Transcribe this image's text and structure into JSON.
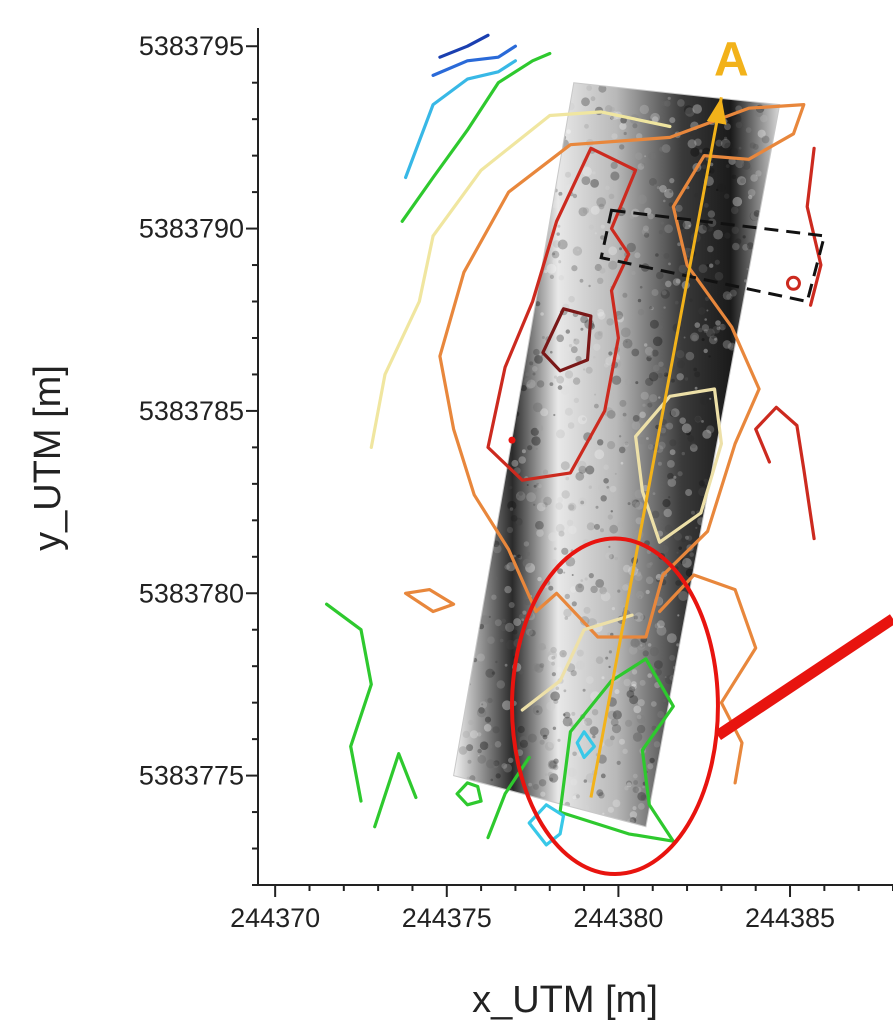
{
  "chart_data": {
    "type": "scatter",
    "title": "",
    "xlabel": "x_UTM [m]",
    "ylabel": "y_UTM [m]",
    "xlim": [
      244369.5,
      244388
    ],
    "ylim": [
      5383772,
      5383795.5
    ],
    "x_ticks": [
      244370,
      244375,
      244380,
      244385
    ],
    "x_tick_labels": [
      "244370",
      "244375",
      "244380",
      "244385"
    ],
    "y_ticks": [
      5383775,
      5383780,
      5383785,
      5383790,
      5383795
    ],
    "y_tick_labels": [
      "5383775",
      "5383780",
      "5383785",
      "5383790",
      "5383795"
    ],
    "grid": false,
    "profile": {
      "label": "A",
      "color": "#f2b21a",
      "start": [
        244379.2,
        5383774.4
      ],
      "end": [
        244383.0,
        5383793.6
      ]
    },
    "survey_strip": {
      "corners": [
        [
          244378.7,
          5383794.0
        ],
        [
          244384.7,
          5383793.4
        ],
        [
          244380.8,
          5383773.6
        ],
        [
          244375.2,
          5383775.0
        ]
      ]
    },
    "dashed_box": {
      "color": "#111111",
      "corners": [
        [
          244379.8,
          5383790.5
        ],
        [
          244386.0,
          5383789.8
        ],
        [
          244385.5,
          5383788.0
        ],
        [
          244379.5,
          5383789.2
        ]
      ]
    },
    "highlight_ellipse": {
      "color": "#e8140f",
      "center": [
        244379.9,
        5383776.9
      ],
      "radius_x": 3.0,
      "radius_y": 4.6
    },
    "pointer_arrow": {
      "color": "#e8140f",
      "from": [
        244388.0,
        5383779.3
      ],
      "to": [
        244382.9,
        5383776.1
      ]
    },
    "contours": [
      {
        "color": "#1a3fb0",
        "points": [
          [
            244374.8,
            5383794.7
          ],
          [
            244375.6,
            5383795.0
          ],
          [
            244376.2,
            5383795.3
          ]
        ]
      },
      {
        "color": "#2a6ad8",
        "points": [
          [
            244374.6,
            5383794.2
          ],
          [
            244375.6,
            5383794.6
          ],
          [
            244376.5,
            5383794.7
          ],
          [
            244377.0,
            5383795.0
          ]
        ]
      },
      {
        "color": "#38b8e6",
        "points": [
          [
            244373.8,
            5383791.4
          ],
          [
            244374.2,
            5383792.4
          ],
          [
            244374.6,
            5383793.4
          ],
          [
            244375.6,
            5383794.1
          ],
          [
            244376.5,
            5383794.3
          ],
          [
            244377.0,
            5383794.6
          ]
        ]
      },
      {
        "color": "#2ec92e",
        "points": [
          [
            244373.7,
            5383790.2
          ],
          [
            244374.6,
            5383791.4
          ],
          [
            244375.6,
            5383792.7
          ],
          [
            244376.5,
            5383794.0
          ],
          [
            244377.5,
            5383794.6
          ],
          [
            244378.0,
            5383794.8
          ]
        ]
      },
      {
        "color": "#f0e6a0",
        "points": [
          [
            244374.6,
            5383789.8
          ],
          [
            244376.0,
            5383791.6
          ],
          [
            244378.0,
            5383793.1
          ],
          [
            244379.5,
            5383793.2
          ],
          [
            244381.5,
            5383792.8
          ]
        ]
      },
      {
        "color": "#f0e6a0",
        "points": [
          [
            244372.8,
            5383784.0
          ],
          [
            244373.2,
            5383786.0
          ],
          [
            244374.2,
            5383788.0
          ],
          [
            244374.6,
            5383789.8
          ]
        ]
      },
      {
        "color": "#e8873c",
        "closed": true,
        "points": [
          [
            244375.5,
            5383788.8
          ],
          [
            244376.8,
            5383791.0
          ],
          [
            244378.6,
            5383792.3
          ],
          [
            244381.5,
            5383792.5
          ],
          [
            244383.8,
            5383793.3
          ],
          [
            244385.4,
            5383793.4
          ],
          [
            244385.1,
            5383792.6
          ],
          [
            244383.8,
            5383791.9
          ],
          [
            244382.5,
            5383792.0
          ],
          [
            244381.6,
            5383790.6
          ],
          [
            244382.0,
            5383789.0
          ],
          [
            244383.3,
            5383787.3
          ],
          [
            244384.1,
            5383785.6
          ],
          [
            244383.4,
            5383784.1
          ],
          [
            244382.6,
            5383781.7
          ],
          [
            244381.3,
            5383780.5
          ],
          [
            244380.8,
            5383778.8
          ],
          [
            244379.4,
            5383778.8
          ],
          [
            244378.2,
            5383780.0
          ],
          [
            244377.6,
            5383779.5
          ],
          [
            244376.8,
            5383781.2
          ],
          [
            244375.8,
            5383782.7
          ],
          [
            244375.2,
            5383784.5
          ],
          [
            244374.8,
            5383786.5
          ]
        ]
      },
      {
        "color": "#e8873c",
        "closed": true,
        "points": [
          [
            244373.8,
            5383780.0
          ],
          [
            244374.5,
            5383780.1
          ],
          [
            244375.2,
            5383779.7
          ],
          [
            244374.6,
            5383779.5
          ]
        ]
      },
      {
        "color": "#e8873c",
        "points": [
          [
            244381.2,
            5383779.5
          ],
          [
            244382.2,
            5383780.5
          ],
          [
            244383.4,
            5383780.1
          ],
          [
            244384.0,
            5383778.5
          ],
          [
            244383.0,
            5383777.0
          ],
          [
            244383.6,
            5383775.9
          ],
          [
            244383.4,
            5383774.8
          ]
        ]
      },
      {
        "color": "#cc2a1f",
        "closed": true,
        "points": [
          [
            244376.2,
            5383784.0
          ],
          [
            244376.7,
            5383786.2
          ],
          [
            244377.5,
            5383788.0
          ],
          [
            244378.2,
            5383790.2
          ],
          [
            244379.2,
            5383792.2
          ],
          [
            244380.5,
            5383791.6
          ],
          [
            244379.8,
            5383790.0
          ],
          [
            244380.3,
            5383789.3
          ],
          [
            244379.8,
            5383788.3
          ],
          [
            244380.0,
            5383787.0
          ],
          [
            244379.6,
            5383785.0
          ],
          [
            244378.6,
            5383783.3
          ],
          [
            244377.2,
            5383783.1
          ]
        ]
      },
      {
        "color": "#cc2a1f",
        "points": [
          [
            244385.7,
            5383792.2
          ],
          [
            244385.5,
            5383790.6
          ],
          [
            244385.9,
            5383789.0
          ],
          [
            244385.6,
            5383787.9
          ]
        ]
      },
      {
        "color": "#cc2a1f",
        "points": [
          [
            244384.4,
            5383783.6
          ],
          [
            244384.0,
            5383784.5
          ],
          [
            244384.6,
            5383785.1
          ],
          [
            244385.2,
            5383784.6
          ],
          [
            244385.4,
            5383783.4
          ],
          [
            244385.7,
            5383781.5
          ]
        ]
      },
      {
        "color": "#7a1818",
        "closed": true,
        "points": [
          [
            244377.8,
            5383786.6
          ],
          [
            244378.4,
            5383787.8
          ],
          [
            244379.2,
            5383787.6
          ],
          [
            244379.1,
            5383786.4
          ],
          [
            244378.3,
            5383786.1
          ]
        ]
      },
      {
        "color": "#ede0a8",
        "closed": true,
        "points": [
          [
            244380.7,
            5383782.8
          ],
          [
            244380.5,
            5383784.3
          ],
          [
            244381.5,
            5383785.4
          ],
          [
            244382.8,
            5383785.6
          ],
          [
            244383.0,
            5383784.1
          ],
          [
            244382.4,
            5383782.2
          ],
          [
            244381.2,
            5383781.4
          ]
        ]
      },
      {
        "color": "#ede0a8",
        "points": [
          [
            244377.2,
            5383776.8
          ],
          [
            244378.3,
            5383777.6
          ],
          [
            244379.0,
            5383779.0
          ],
          [
            244380.4,
            5383779.4
          ]
        ]
      },
      {
        "color": "#2ec92e",
        "points": [
          [
            244371.5,
            5383779.7
          ],
          [
            244372.5,
            5383779.0
          ],
          [
            244372.8,
            5383777.5
          ],
          [
            244372.2,
            5383775.8
          ],
          [
            244372.5,
            5383774.3
          ]
        ]
      },
      {
        "color": "#2ec92e",
        "points": [
          [
            244372.9,
            5383773.6
          ],
          [
            244373.6,
            5383775.6
          ],
          [
            244374.1,
            5383774.4
          ]
        ]
      },
      {
        "color": "#2ec92e",
        "points": [
          [
            244376.2,
            5383773.3
          ],
          [
            244376.7,
            5383774.5
          ],
          [
            244377.4,
            5383775.5
          ]
        ]
      },
      {
        "color": "#2ec92e",
        "closed": true,
        "points": [
          [
            244378.3,
            5383774.0
          ],
          [
            244378.6,
            5383776.2
          ],
          [
            244379.8,
            5383777.6
          ],
          [
            244380.8,
            5383778.2
          ],
          [
            244381.6,
            5383776.9
          ],
          [
            244380.7,
            5383775.7
          ],
          [
            244380.9,
            5383774.2
          ],
          [
            244381.6,
            5383773.2
          ],
          [
            244380.3,
            5383773.4
          ]
        ]
      },
      {
        "color": "#2ec92e",
        "closed": true,
        "points": [
          [
            244375.6,
            5383774.8
          ],
          [
            244375.9,
            5383774.7
          ],
          [
            244376.0,
            5383774.3
          ],
          [
            244375.6,
            5383774.2
          ],
          [
            244375.3,
            5383774.5
          ]
        ]
      },
      {
        "color": "#38c8e8",
        "closed": true,
        "points": [
          [
            244377.9,
            5383773.1
          ],
          [
            244378.3,
            5383773.4
          ],
          [
            244378.4,
            5383773.9
          ],
          [
            244377.9,
            5383774.2
          ],
          [
            244377.4,
            5383773.7
          ]
        ]
      },
      {
        "color": "#38c8e8",
        "closed": true,
        "points": [
          [
            244378.8,
            5383775.9
          ],
          [
            244379.0,
            5383776.2
          ],
          [
            244379.3,
            5383775.8
          ],
          [
            244379.0,
            5383775.5
          ]
        ]
      }
    ]
  }
}
